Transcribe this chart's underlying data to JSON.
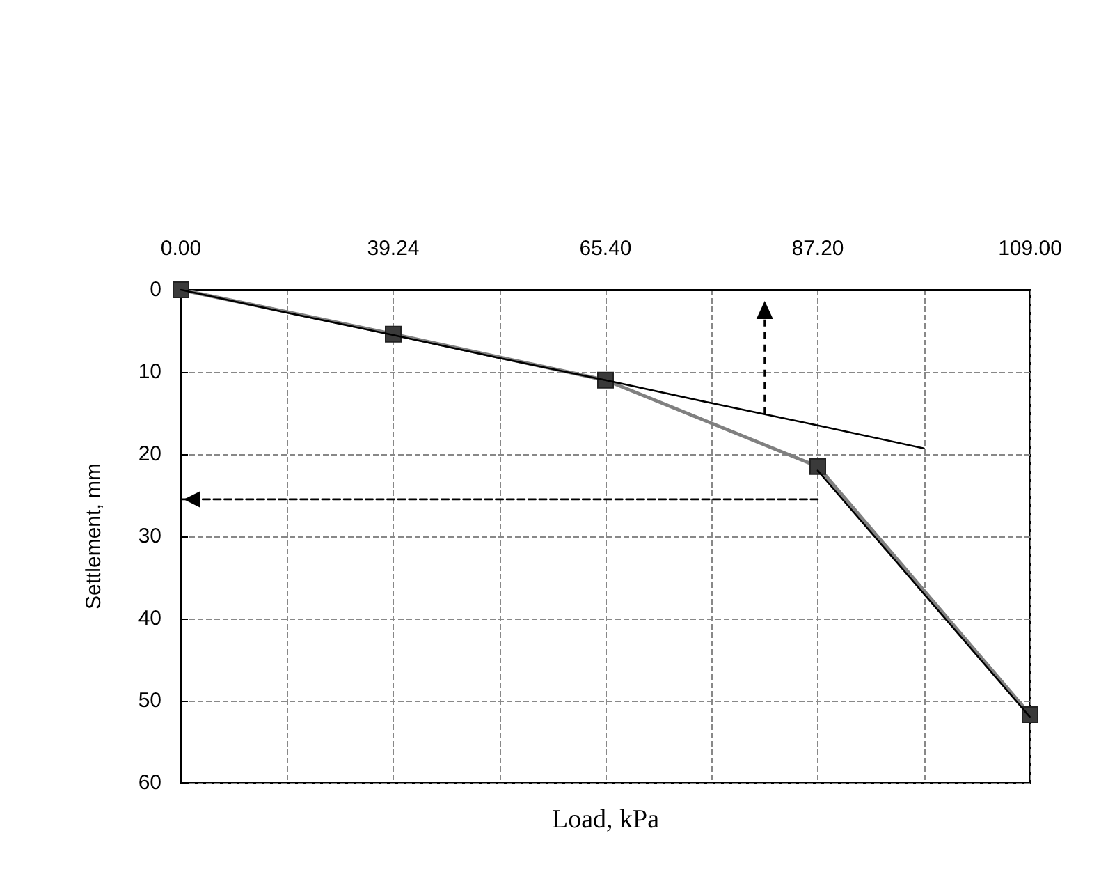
{
  "chart_data": {
    "type": "line",
    "xlabel": "Load, kPa",
    "ylabel": "Settlement, mm",
    "categories": [
      "0.00",
      null,
      "39.24",
      null,
      "65.40",
      null,
      "87.20",
      null,
      "109.00"
    ],
    "series": [
      {
        "color": "#808080",
        "marker": "square",
        "line_style": "solid",
        "values": [
          0,
          null,
          5.4,
          null,
          11,
          null,
          21.5,
          null,
          51.7
        ]
      },
      {
        "color": "#000000",
        "marker": "none",
        "line_style": "solid",
        "values": [
          0,
          2.8,
          5.5,
          8.3,
          11,
          13.8,
          16.5,
          19.3,
          null
        ]
      },
      {
        "color": "#000000",
        "marker": "none",
        "line_style": "solid",
        "values": [
          null,
          null,
          null,
          null,
          null,
          null,
          22,
          37,
          52
        ]
      },
      {
        "color": "#000000",
        "marker": "none",
        "line_style": "dashed",
        "values": [
          25.5,
          25.5,
          25.5,
          25.5,
          25.5,
          25.5,
          25.5,
          null,
          null
        ]
      }
    ],
    "ylim": [
      60,
      0
    ],
    "yticks": [
      0,
      10,
      20,
      30,
      40,
      50,
      60
    ],
    "grid": true
  }
}
